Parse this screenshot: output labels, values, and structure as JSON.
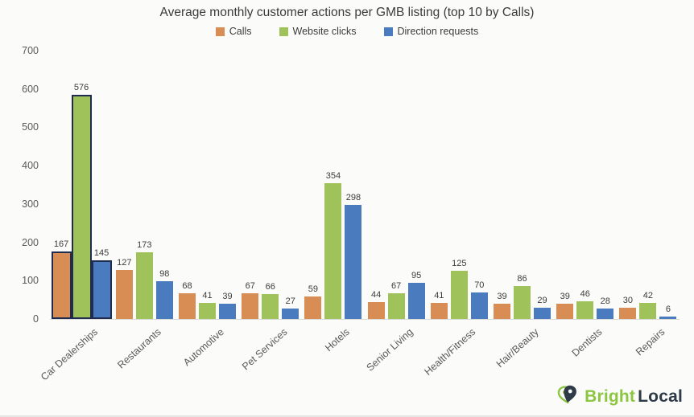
{
  "chart_data": {
    "type": "bar",
    "title": "Average monthly customer actions per GMB listing (top 10 by Calls)",
    "categories": [
      "Car Dealerships",
      "Restaurants",
      "Automotive",
      "Pet Services",
      "Hotels",
      "Senior Living",
      "Health/Fitness",
      "Hair/Beauty",
      "Dentists",
      "Repairs"
    ],
    "series": [
      {
        "name": "Calls",
        "color": "#D78D53",
        "values": [
          167,
          127,
          68,
          67,
          59,
          44,
          41,
          39,
          39,
          30
        ]
      },
      {
        "name": "Website clicks",
        "color": "#9FC25B",
        "values": [
          576,
          173,
          41,
          66,
          354,
          67,
          125,
          86,
          46,
          42
        ]
      },
      {
        "name": "Direction requests",
        "color": "#4A7BBF",
        "values": [
          145,
          98,
          39,
          27,
          298,
          95,
          70,
          29,
          28,
          6
        ]
      }
    ],
    "ylim": [
      0,
      700
    ],
    "y_ticks": [
      700,
      600,
      500,
      400,
      300,
      200,
      100,
      0
    ],
    "grid": false,
    "legend_position": "top",
    "value_labels": true,
    "highlighted_category_index": 0,
    "highlight_border_color": "#1F2C4F",
    "axis_line_color": "#D9D9D7",
    "background_color": "#FBFBF9"
  },
  "logo": {
    "brand_green_text": "Bright",
    "brand_dark_text": "Local",
    "green": "#8CC540",
    "dark": "#2E3A48"
  }
}
